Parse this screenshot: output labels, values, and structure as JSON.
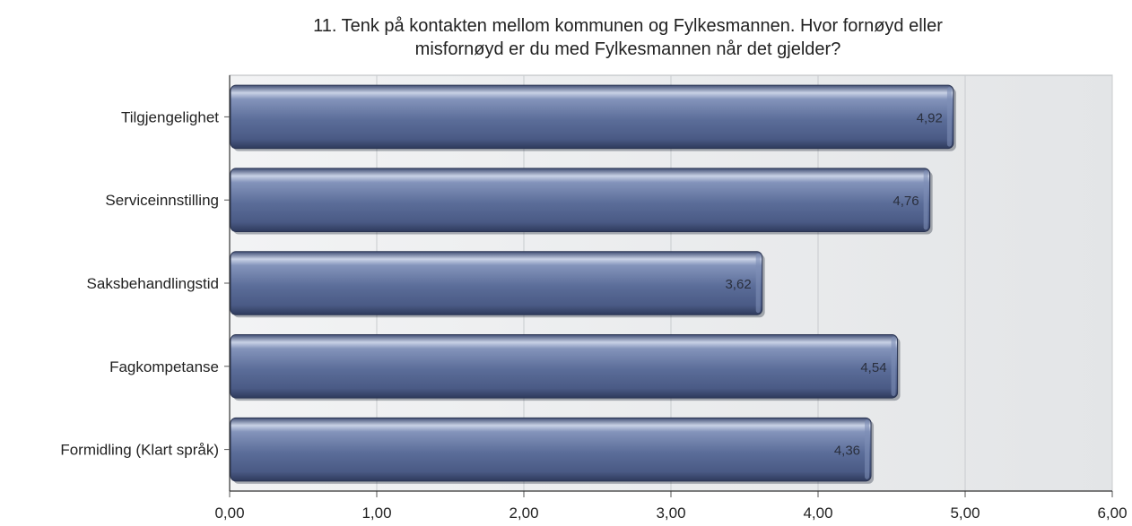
{
  "chart_data": {
    "type": "bar",
    "orientation": "horizontal",
    "title": "11. Tenk på kontakten mellom kommunen og Fylkesmannen. Hvor fornøyd eller\nmisfornøyd er du med Fylkesmannen når det gjelder?",
    "categories": [
      "Tilgjengelighet",
      "Serviceinnstilling",
      "Saksbehandlingstid",
      "Fagkompetanse",
      "Formidling (Klart språk)"
    ],
    "values": [
      4.92,
      4.76,
      3.62,
      4.54,
      4.36
    ],
    "value_labels": [
      "4,92",
      "4,76",
      "3,62",
      "4,54",
      "4,36"
    ],
    "xlim": [
      0,
      6
    ],
    "xticks": [
      0,
      1,
      2,
      3,
      4,
      5,
      6
    ],
    "xtick_labels": [
      "0,00",
      "1,00",
      "2,00",
      "3,00",
      "4,00",
      "5,00",
      "6,00"
    ],
    "xlabel": "",
    "ylabel": "",
    "grid": true,
    "colors": {
      "bar": "#5b6d99",
      "bar_dark": "#2e3a5c",
      "bar_highlight": "#c9d2e6",
      "plot_bg": "#e6e8ea",
      "grid": "#c8cbce"
    }
  }
}
